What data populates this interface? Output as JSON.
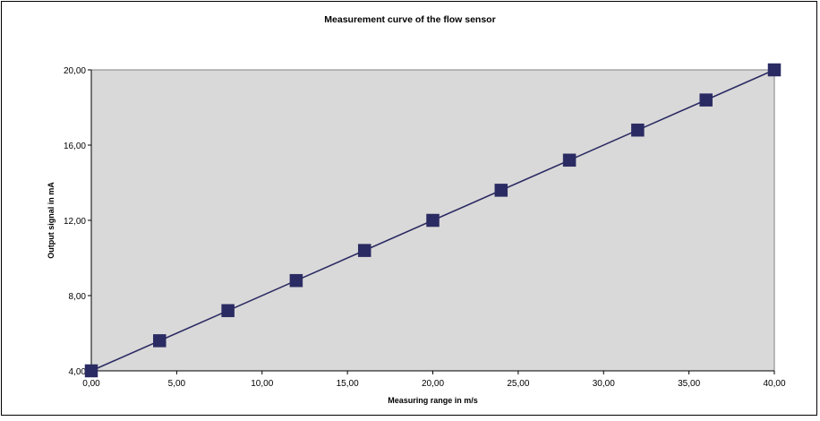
{
  "chart_data": {
    "type": "line",
    "title": "Measurement curve of the flow sensor",
    "xlabel": "Measuring range in m/s",
    "ylabel": "Output signal in mA",
    "xlim": [
      0,
      40
    ],
    "ylim": [
      4,
      20
    ],
    "x_ticks": [
      "0,00",
      "5,00",
      "10,00",
      "15,00",
      "20,00",
      "25,00",
      "30,00",
      "35,00",
      "40,00"
    ],
    "y_ticks": [
      "4,00",
      "8,00",
      "12,00",
      "16,00",
      "20,00"
    ],
    "x_tick_values": [
      0,
      5,
      10,
      15,
      20,
      25,
      30,
      35,
      40
    ],
    "y_tick_values": [
      4,
      8,
      12,
      16,
      20
    ],
    "grid": false,
    "legend": "none",
    "marker": "square",
    "series": [
      {
        "x": [
          0,
          4,
          8,
          12,
          16,
          20,
          24,
          28,
          32,
          36,
          40
        ],
        "values": [
          4.0,
          5.6,
          7.2,
          8.8,
          10.4,
          12.0,
          13.6,
          15.2,
          16.8,
          18.4,
          20.0
        ],
        "color": "#2b2b63"
      }
    ],
    "plot_background": "#d9d9d9"
  }
}
